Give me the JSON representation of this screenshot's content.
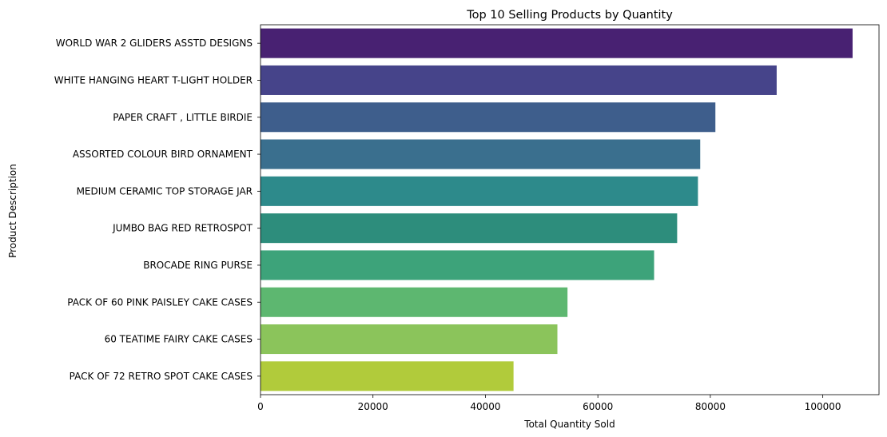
{
  "chart_data": {
    "type": "bar",
    "orientation": "horizontal",
    "title": "Top 10 Selling Products by Quantity",
    "xlabel": "Total Quantity Sold",
    "ylabel": "Product Description",
    "xlim": [
      0,
      110000
    ],
    "xticks": [
      0,
      20000,
      40000,
      60000,
      80000,
      100000
    ],
    "xtick_labels": [
      "0",
      "20000",
      "40000",
      "60000",
      "80000",
      "100000"
    ],
    "grid": false,
    "categories": [
      "WORLD WAR 2 GLIDERS ASSTD DESIGNS",
      "WHITE HANGING HEART T-LIGHT HOLDER",
      "PAPER CRAFT , LITTLE BIRDIE",
      "ASSORTED COLOUR BIRD ORNAMENT",
      "MEDIUM CERAMIC TOP STORAGE JAR",
      "JUMBO BAG RED RETROSPOT",
      "BROCADE RING PURSE ",
      "PACK OF 60 PINK PAISLEY CAKE CASES",
      "60 TEATIME FAIRY CAKE CASES",
      "PACK OF 72 RETRO SPOT CAKE CASES"
    ],
    "values": [
      105300,
      91800,
      80900,
      78200,
      77800,
      74100,
      70000,
      54600,
      52800,
      45000
    ],
    "colors": [
      "#482172",
      "#46448a",
      "#3e5e8c",
      "#3a6f8e",
      "#2d8a8b",
      "#2d8d7c",
      "#3da37a",
      "#5db770",
      "#8bc45b",
      "#b1cb3b"
    ]
  }
}
